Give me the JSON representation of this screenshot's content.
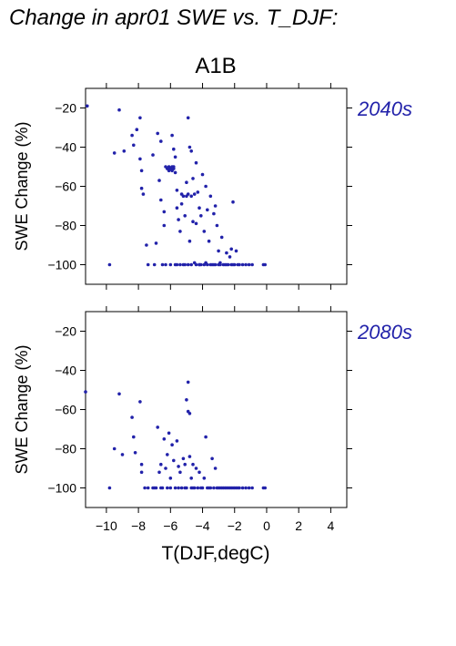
{
  "figure": {
    "title": "Change in apr01 SWE vs. T_DJF:",
    "scenario": "A1B",
    "xlabel": "T(DJF,degC)",
    "point_color": "#2222aa",
    "label_color": "#2222aa"
  },
  "chart_data": [
    {
      "type": "scatter",
      "panel_label": "2040s",
      "xlabel": "T(DJF,degC)",
      "ylabel": "SWE Change (%)",
      "xlim": [
        -11.3,
        5
      ],
      "ylim": [
        -110,
        -10
      ],
      "xticks": [
        -10,
        -8,
        -6,
        -4,
        -2,
        0,
        2,
        4
      ],
      "yticks": [
        -20,
        -40,
        -60,
        -80,
        -100
      ],
      "grid": false,
      "points": [
        [
          -11.2,
          -19
        ],
        [
          -9.8,
          -100
        ],
        [
          -9.5,
          -43
        ],
        [
          -9.2,
          -21
        ],
        [
          -8.9,
          -42
        ],
        [
          -8.4,
          -34
        ],
        [
          -8.3,
          -39
        ],
        [
          -8.1,
          -31
        ],
        [
          -7.9,
          -25
        ],
        [
          -7.9,
          -46
        ],
        [
          -7.8,
          -52
        ],
        [
          -7.8,
          -61
        ],
        [
          -7.7,
          -64
        ],
        [
          -7.5,
          -90
        ],
        [
          -7.4,
          -100
        ],
        [
          -7.1,
          -44
        ],
        [
          -7.0,
          -100
        ],
        [
          -6.9,
          -89
        ],
        [
          -6.8,
          -33
        ],
        [
          -6.7,
          -57
        ],
        [
          -6.6,
          -37
        ],
        [
          -6.6,
          -67
        ],
        [
          -6.5,
          -100
        ],
        [
          -6.4,
          -73
        ],
        [
          -6.4,
          -80
        ],
        [
          -6.3,
          -50
        ],
        [
          -6.2,
          -51
        ],
        [
          -6.1,
          -50
        ],
        [
          -6.1,
          -52
        ],
        [
          -6.0,
          -51
        ],
        [
          -5.9,
          -50
        ],
        [
          -5.9,
          -52
        ],
        [
          -5.8,
          -51
        ],
        [
          -5.8,
          -50
        ],
        [
          -5.7,
          -53
        ],
        [
          -5.9,
          -34
        ],
        [
          -5.8,
          -41
        ],
        [
          -5.7,
          -45
        ],
        [
          -5.6,
          -62
        ],
        [
          -5.6,
          -71
        ],
        [
          -5.5,
          -77
        ],
        [
          -5.4,
          -100
        ],
        [
          -5.4,
          -83
        ],
        [
          -5.3,
          -64
        ],
        [
          -5.3,
          -69
        ],
        [
          -5.2,
          -65
        ],
        [
          -5.1,
          -75
        ],
        [
          -5.1,
          -100
        ],
        [
          -5.0,
          -65
        ],
        [
          -5.0,
          -58
        ],
        [
          -4.9,
          -25
        ],
        [
          -4.9,
          -64
        ],
        [
          -4.8,
          -40
        ],
        [
          -4.8,
          -88
        ],
        [
          -4.7,
          -42
        ],
        [
          -4.7,
          -65
        ],
        [
          -4.6,
          -56
        ],
        [
          -4.6,
          -78
        ],
        [
          -4.5,
          -64
        ],
        [
          -4.5,
          -99
        ],
        [
          -4.4,
          -48
        ],
        [
          -4.4,
          -79
        ],
        [
          -4.3,
          -63
        ],
        [
          -4.2,
          -71
        ],
        [
          -4.2,
          -100
        ],
        [
          -4.1,
          -75
        ],
        [
          -4.0,
          -54
        ],
        [
          -3.9,
          -83
        ],
        [
          -3.8,
          -60
        ],
        [
          -3.8,
          -99
        ],
        [
          -3.7,
          -72
        ],
        [
          -3.6,
          -88
        ],
        [
          -3.5,
          -65
        ],
        [
          -3.4,
          -100
        ],
        [
          -3.3,
          -74
        ],
        [
          -3.2,
          -70
        ],
        [
          -3.1,
          -80
        ],
        [
          -3.0,
          -93
        ],
        [
          -2.9,
          -99
        ],
        [
          -2.8,
          -86
        ],
        [
          -2.7,
          -100
        ],
        [
          -2.5,
          -94
        ],
        [
          -2.4,
          -100
        ],
        [
          -2.3,
          -96
        ],
        [
          -2.2,
          -92
        ],
        [
          -2.1,
          -68
        ],
        [
          -2.0,
          -100
        ],
        [
          -1.9,
          -93
        ],
        [
          -1.7,
          -100
        ],
        [
          -0.2,
          -100
        ],
        [
          -6.3,
          -100
        ],
        [
          -6.0,
          -100
        ],
        [
          -5.7,
          -100
        ],
        [
          -5.2,
          -100
        ],
        [
          -4.9,
          -100
        ],
        [
          -4.7,
          -100
        ],
        [
          -4.4,
          -100
        ],
        [
          -4.1,
          -100
        ],
        [
          -3.9,
          -100
        ],
        [
          -3.7,
          -100
        ],
        [
          -3.5,
          -100
        ],
        [
          -3.2,
          -100
        ],
        [
          -3.0,
          -100
        ],
        [
          -2.9,
          -100
        ],
        [
          -2.6,
          -100
        ],
        [
          -2.2,
          -100
        ],
        [
          -2.1,
          -100
        ],
        [
          -1.8,
          -100
        ],
        [
          -1.5,
          -100
        ],
        [
          -1.3,
          -100
        ],
        [
          -1.1,
          -100
        ],
        [
          -0.9,
          -100
        ],
        [
          -0.1,
          -100
        ],
        [
          -5.6,
          -100
        ],
        [
          -4.2,
          -100
        ],
        [
          -3.3,
          -100
        ],
        [
          -2.5,
          -100
        ]
      ]
    },
    {
      "type": "scatter",
      "panel_label": "2080s",
      "xlabel": "T(DJF,degC)",
      "ylabel": "SWE Change (%)",
      "xlim": [
        -11.3,
        5
      ],
      "ylim": [
        -110,
        -10
      ],
      "xticks": [
        -10,
        -8,
        -6,
        -4,
        -2,
        0,
        2,
        4
      ],
      "yticks": [
        -20,
        -40,
        -60,
        -80,
        -100
      ],
      "grid": false,
      "points": [
        [
          -11.3,
          -51
        ],
        [
          -9.8,
          -100
        ],
        [
          -9.5,
          -80
        ],
        [
          -9.2,
          -52
        ],
        [
          -9.0,
          -83
        ],
        [
          -8.4,
          -64
        ],
        [
          -8.3,
          -74
        ],
        [
          -8.2,
          -82
        ],
        [
          -7.9,
          -56
        ],
        [
          -7.8,
          -88
        ],
        [
          -7.8,
          -92
        ],
        [
          -7.6,
          -100
        ],
        [
          -7.4,
          -100
        ],
        [
          -7.1,
          -100
        ],
        [
          -6.9,
          -100
        ],
        [
          -6.8,
          -69
        ],
        [
          -6.7,
          -92
        ],
        [
          -6.6,
          -88
        ],
        [
          -6.5,
          -100
        ],
        [
          -6.4,
          -75
        ],
        [
          -6.3,
          -90
        ],
        [
          -6.2,
          -83
        ],
        [
          -6.1,
          -72
        ],
        [
          -6.0,
          -95
        ],
        [
          -6.0,
          -100
        ],
        [
          -5.9,
          -78
        ],
        [
          -5.8,
          -86
        ],
        [
          -5.7,
          -100
        ],
        [
          -5.6,
          -76
        ],
        [
          -5.5,
          -89
        ],
        [
          -5.4,
          -92
        ],
        [
          -5.3,
          -100
        ],
        [
          -5.2,
          -85
        ],
        [
          -5.1,
          -88
        ],
        [
          -5.0,
          -55
        ],
        [
          -5.0,
          -100
        ],
        [
          -4.9,
          -46
        ],
        [
          -4.9,
          -61
        ],
        [
          -4.8,
          -62
        ],
        [
          -4.8,
          -84
        ],
        [
          -4.7,
          -95
        ],
        [
          -4.6,
          -88
        ],
        [
          -4.6,
          -100
        ],
        [
          -4.4,
          -90
        ],
        [
          -4.3,
          -100
        ],
        [
          -4.2,
          -92
        ],
        [
          -4.0,
          -100
        ],
        [
          -3.9,
          -95
        ],
        [
          -3.8,
          -74
        ],
        [
          -3.7,
          -100
        ],
        [
          -3.5,
          -100
        ],
        [
          -3.4,
          -85
        ],
        [
          -3.3,
          -100
        ],
        [
          -3.2,
          -90
        ],
        [
          -3.1,
          -100
        ],
        [
          -2.9,
          -100
        ],
        [
          -2.7,
          -100
        ],
        [
          -2.6,
          -100
        ],
        [
          -2.4,
          -100
        ],
        [
          -2.3,
          -100
        ],
        [
          -2.1,
          -100
        ],
        [
          -1.9,
          -100
        ],
        [
          -1.7,
          -100
        ],
        [
          -1.5,
          -100
        ],
        [
          -1.3,
          -100
        ],
        [
          -1.1,
          -100
        ],
        [
          -0.9,
          -100
        ],
        [
          -0.2,
          -100
        ],
        [
          -0.1,
          -100
        ],
        [
          -7.0,
          -100
        ],
        [
          -6.6,
          -100
        ],
        [
          -6.2,
          -100
        ],
        [
          -5.5,
          -100
        ],
        [
          -5.1,
          -100
        ],
        [
          -4.7,
          -100
        ],
        [
          -4.5,
          -100
        ],
        [
          -4.1,
          -100
        ],
        [
          -3.6,
          -100
        ],
        [
          -3.0,
          -100
        ],
        [
          -2.8,
          -100
        ],
        [
          -2.5,
          -100
        ],
        [
          -2.2,
          -100
        ],
        [
          -2.0,
          -100
        ],
        [
          -1.8,
          -100
        ]
      ]
    }
  ]
}
